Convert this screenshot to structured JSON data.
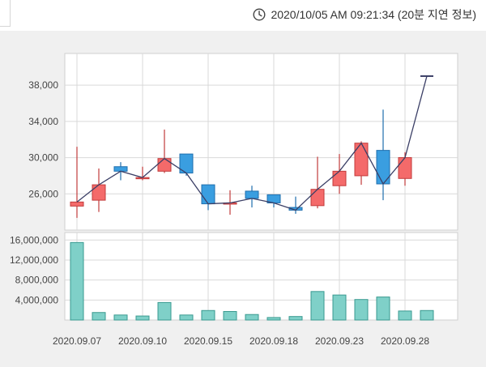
{
  "header": {
    "timestamp": "2020/10/05 AM 09:21:34 (20분 지연 정보)",
    "icon": "clock-icon"
  },
  "colors": {
    "up": "#f46a6a",
    "up_border": "#c23b3b",
    "down": "#3a9ee0",
    "down_border": "#1f6fae",
    "volume": "#7fd0c8",
    "volume_border": "#3a9a90",
    "line": "#3b3f66",
    "grid": "#d9d9d9"
  },
  "chart_data": [
    {
      "type": "candlestick",
      "y_ticks": [
        26000,
        30000,
        34000,
        38000
      ],
      "y_tick_labels": [
        "26,000",
        "30,000",
        "34,000",
        "38,000"
      ],
      "ylim": [
        22000,
        41500
      ],
      "grid": true,
      "line_overlay": "close",
      "candles": [
        {
          "open": 24650,
          "close": 25100,
          "high": 31200,
          "low": 23350
        },
        {
          "open": 25300,
          "close": 27000,
          "high": 28800,
          "low": 24000
        },
        {
          "open": 29000,
          "close": 28500,
          "high": 29500,
          "low": 27500
        },
        {
          "open": 27700,
          "close": 27800,
          "high": 29000,
          "low": 27500
        },
        {
          "open": 28500,
          "close": 29900,
          "high": 33100,
          "low": 28300
        },
        {
          "open": 30400,
          "close": 28300,
          "high": 30400,
          "low": 28000
        },
        {
          "open": 27000,
          "close": 24900,
          "high": 27000,
          "low": 24200
        },
        {
          "open": 24900,
          "close": 25000,
          "high": 26400,
          "low": 23700
        },
        {
          "open": 26300,
          "close": 25500,
          "high": 26900,
          "low": 24500
        },
        {
          "open": 25900,
          "close": 25000,
          "high": 25900,
          "low": 24500
        },
        {
          "open": 24500,
          "close": 24200,
          "high": 25700,
          "low": 23800
        },
        {
          "open": 24700,
          "close": 26500,
          "high": 30100,
          "low": 24400
        },
        {
          "open": 26900,
          "close": 28500,
          "high": 30400,
          "low": 26000
        },
        {
          "open": 28000,
          "close": 31600,
          "high": 31800,
          "low": 27000
        },
        {
          "open": 30800,
          "close": 27100,
          "high": 35300,
          "low": 25300
        },
        {
          "open": 27700,
          "close": 30000,
          "high": 30600,
          "low": 26900
        },
        {
          "open": 39000,
          "close": 39000,
          "high": 39000,
          "low": 39000
        }
      ]
    },
    {
      "type": "bar",
      "y_ticks": [
        4000000,
        8000000,
        12000000,
        16000000
      ],
      "y_tick_labels": [
        "4,000,000",
        "8,000,000",
        "12,000,000",
        "16,000,000"
      ],
      "ylim": [
        0,
        17500000
      ],
      "grid": true,
      "values": [
        15500000,
        1500000,
        1000000,
        800000,
        3500000,
        1000000,
        1900000,
        1700000,
        1100000,
        500000,
        700000,
        5700000,
        5000000,
        4100000,
        4600000,
        1800000,
        1900000
      ]
    }
  ],
  "x_axis": {
    "tick_labels": [
      {
        "index": 0,
        "label": "2020.09.07"
      },
      {
        "index": 3,
        "label": "2020.09.10"
      },
      {
        "index": 6,
        "label": "2020.09.15"
      },
      {
        "index": 9,
        "label": "2020.09.18"
      },
      {
        "index": 12,
        "label": "2020.09.23"
      },
      {
        "index": 15,
        "label": "2020.09.28"
      }
    ]
  }
}
